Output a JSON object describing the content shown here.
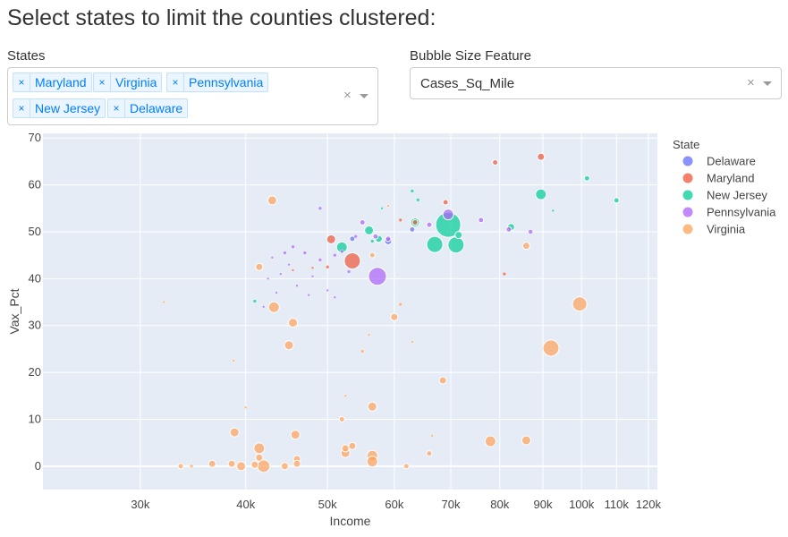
{
  "title": "Select states to limit the counties clustered:",
  "states_filter": {
    "label": "States",
    "selected": [
      "Maryland",
      "Virginia",
      "Pennsylvania",
      "New Jersey",
      "Delaware"
    ],
    "clear_icon": "×",
    "remove_icon": "×"
  },
  "bubble_filter": {
    "label": "Bubble Size Feature",
    "value": "Cases_Sq_Mile",
    "clear_icon": "×"
  },
  "chart_data": {
    "type": "scatter",
    "xlabel": "Income",
    "ylabel": "Vax_Pct",
    "x_scale": "log",
    "xlim": [
      23000,
      123000
    ],
    "ylim": [
      -5,
      71
    ],
    "x_ticks": [
      {
        "v": 30000,
        "label": "30k"
      },
      {
        "v": 40000,
        "label": "40k"
      },
      {
        "v": 50000,
        "label": "50k"
      },
      {
        "v": 60000,
        "label": "60k"
      },
      {
        "v": 70000,
        "label": "70k"
      },
      {
        "v": 80000,
        "label": "80k"
      },
      {
        "v": 90000,
        "label": "90k"
      },
      {
        "v": 100000,
        "label": "100k"
      },
      {
        "v": 110000,
        "label": "110k"
      },
      {
        "v": 120000,
        "label": "120k"
      }
    ],
    "y_ticks": [
      0,
      10,
      20,
      30,
      40,
      50,
      60,
      70
    ],
    "legend_title": "State",
    "legend_position": "right",
    "series": [
      {
        "name": "Delaware",
        "color": "#636efa",
        "points": [
          {
            "x": 53500,
            "y": 48.5,
            "s": 3
          },
          {
            "x": 59000,
            "y": 48,
            "s": 4
          },
          {
            "x": 63000,
            "y": 50.5,
            "s": 3
          }
        ]
      },
      {
        "name": "Maryland",
        "color": "#ef553b",
        "points": [
          {
            "x": 50500,
            "y": 48.4,
            "s": 5
          },
          {
            "x": 53500,
            "y": 43.8,
            "s": 9
          },
          {
            "x": 50000,
            "y": 42.5,
            "s": 2
          },
          {
            "x": 61000,
            "y": 52.5,
            "s": 2
          },
          {
            "x": 63500,
            "y": 52,
            "s": 3
          },
          {
            "x": 69000,
            "y": 56.3,
            "s": 3
          },
          {
            "x": 79000,
            "y": 64.8,
            "s": 3
          },
          {
            "x": 89500,
            "y": 66,
            "s": 4
          },
          {
            "x": 81000,
            "y": 41,
            "s": 2
          },
          {
            "x": 48000,
            "y": 42.3,
            "s": 1.5
          },
          {
            "x": 45500,
            "y": 41.8,
            "s": 1.5
          }
        ]
      },
      {
        "name": "New Jersey",
        "color": "#00cc96",
        "points": [
          {
            "x": 69500,
            "y": 51.5,
            "s": 14
          },
          {
            "x": 67000,
            "y": 47.3,
            "s": 9
          },
          {
            "x": 71000,
            "y": 47.2,
            "s": 9
          },
          {
            "x": 52000,
            "y": 46.7,
            "s": 6
          },
          {
            "x": 56000,
            "y": 50.3,
            "s": 5
          },
          {
            "x": 63500,
            "y": 52,
            "s": 5
          },
          {
            "x": 89500,
            "y": 58,
            "s": 6
          },
          {
            "x": 57500,
            "y": 48.5,
            "s": 4
          },
          {
            "x": 71500,
            "y": 49.3,
            "s": 4
          },
          {
            "x": 82500,
            "y": 51,
            "s": 4
          },
          {
            "x": 101500,
            "y": 61.4,
            "s": 3
          },
          {
            "x": 110000,
            "y": 56.7,
            "s": 3
          },
          {
            "x": 64000,
            "y": 56.8,
            "s": 2
          },
          {
            "x": 63000,
            "y": 58.7,
            "s": 2
          },
          {
            "x": 56500,
            "y": 48,
            "s": 2
          },
          {
            "x": 41000,
            "y": 35.2,
            "s": 2
          },
          {
            "x": 58000,
            "y": 55,
            "s": 1.5
          },
          {
            "x": 92500,
            "y": 54.5,
            "s": 1.5
          }
        ]
      },
      {
        "name": "Pennsylvania",
        "color": "#ab63fa",
        "points": [
          {
            "x": 57300,
            "y": 40.5,
            "s": 10
          },
          {
            "x": 69500,
            "y": 53.7,
            "s": 6
          },
          {
            "x": 57000,
            "y": 49,
            "s": 3
          },
          {
            "x": 55000,
            "y": 52,
            "s": 3
          },
          {
            "x": 59000,
            "y": 48.5,
            "s": 3
          },
          {
            "x": 66000,
            "y": 51.5,
            "s": 3
          },
          {
            "x": 76000,
            "y": 52.5,
            "s": 3
          },
          {
            "x": 82000,
            "y": 50.5,
            "s": 3
          },
          {
            "x": 87000,
            "y": 50,
            "s": 2.5
          },
          {
            "x": 52000,
            "y": 45.8,
            "s": 2
          },
          {
            "x": 49000,
            "y": 44,
            "s": 2
          },
          {
            "x": 51000,
            "y": 45,
            "s": 2
          },
          {
            "x": 47000,
            "y": 45.5,
            "s": 2
          },
          {
            "x": 45500,
            "y": 46.8,
            "s": 2
          },
          {
            "x": 44500,
            "y": 45.5,
            "s": 2
          },
          {
            "x": 43000,
            "y": 44.5,
            "s": 1.5
          },
          {
            "x": 45000,
            "y": 43,
            "s": 1.5
          },
          {
            "x": 42500,
            "y": 40,
            "s": 1.5
          },
          {
            "x": 43500,
            "y": 37,
            "s": 1.5
          },
          {
            "x": 48000,
            "y": 40.5,
            "s": 1.5
          },
          {
            "x": 49000,
            "y": 55,
            "s": 2
          },
          {
            "x": 54000,
            "y": 49,
            "s": 2
          },
          {
            "x": 53000,
            "y": 41.5,
            "s": 2
          },
          {
            "x": 44000,
            "y": 41,
            "s": 1.5
          },
          {
            "x": 46000,
            "y": 38.5,
            "s": 1.5
          },
          {
            "x": 47500,
            "y": 36.5,
            "s": 1.5
          },
          {
            "x": 50000,
            "y": 37.5,
            "s": 1.5
          },
          {
            "x": 51000,
            "y": 36,
            "s": 1.5
          },
          {
            "x": 42000,
            "y": 34,
            "s": 1.5
          }
        ]
      },
      {
        "name": "Virginia",
        "color": "#ffa15a",
        "points": [
          {
            "x": 99500,
            "y": 34.6,
            "s": 8
          },
          {
            "x": 92000,
            "y": 25.2,
            "s": 9
          },
          {
            "x": 43000,
            "y": 56.7,
            "s": 5
          },
          {
            "x": 43200,
            "y": 33.9,
            "s": 6
          },
          {
            "x": 45500,
            "y": 30.6,
            "s": 5
          },
          {
            "x": 45000,
            "y": 25.8,
            "s": 5
          },
          {
            "x": 41500,
            "y": 42.5,
            "s": 4
          },
          {
            "x": 41500,
            "y": 3.8,
            "s": 6
          },
          {
            "x": 38800,
            "y": 7.2,
            "s": 5
          },
          {
            "x": 45800,
            "y": 6.7,
            "s": 5
          },
          {
            "x": 56500,
            "y": 12.7,
            "s": 5
          },
          {
            "x": 56500,
            "y": 2.2,
            "s": 6
          },
          {
            "x": 56500,
            "y": 1.0,
            "s": 6
          },
          {
            "x": 42000,
            "y": 0,
            "s": 7
          },
          {
            "x": 39500,
            "y": 0,
            "s": 5
          },
          {
            "x": 41000,
            "y": 0.3,
            "s": 4
          },
          {
            "x": 46000,
            "y": 1.5,
            "s": 4
          },
          {
            "x": 46000,
            "y": 0.5,
            "s": 4
          },
          {
            "x": 44500,
            "y": 0,
            "s": 4
          },
          {
            "x": 41500,
            "y": 1.8,
            "s": 4
          },
          {
            "x": 36500,
            "y": 0.5,
            "s": 4
          },
          {
            "x": 38500,
            "y": 0.5,
            "s": 4
          },
          {
            "x": 33500,
            "y": 0,
            "s": 3
          },
          {
            "x": 34500,
            "y": 0,
            "s": 2
          },
          {
            "x": 52500,
            "y": 2.8,
            "s": 5
          },
          {
            "x": 52500,
            "y": 3.8,
            "s": 4
          },
          {
            "x": 53500,
            "y": 4.3,
            "s": 4
          },
          {
            "x": 78000,
            "y": 5.3,
            "s": 6
          },
          {
            "x": 86000,
            "y": 5.5,
            "s": 5
          },
          {
            "x": 86000,
            "y": 47,
            "s": 4
          },
          {
            "x": 68500,
            "y": 18.3,
            "s": 4
          },
          {
            "x": 60000,
            "y": 31.8,
            "s": 4
          },
          {
            "x": 66000,
            "y": 2.7,
            "s": 3
          },
          {
            "x": 62000,
            "y": 0,
            "s": 3
          },
          {
            "x": 52000,
            "y": 10,
            "s": 3
          },
          {
            "x": 55000,
            "y": 24.5,
            "s": 2
          },
          {
            "x": 61000,
            "y": 34.5,
            "s": 2
          },
          {
            "x": 56500,
            "y": 45,
            "s": 3
          },
          {
            "x": 38700,
            "y": 22.5,
            "s": 1.5
          },
          {
            "x": 40000,
            "y": 12.5,
            "s": 1.5
          },
          {
            "x": 32000,
            "y": 35,
            "s": 1.5
          },
          {
            "x": 63000,
            "y": 26.5,
            "s": 1.5
          },
          {
            "x": 52500,
            "y": 15,
            "s": 1.5
          },
          {
            "x": 66500,
            "y": 6.5,
            "s": 1.5
          },
          {
            "x": 56000,
            "y": 28,
            "s": 1.5
          },
          {
            "x": 59000,
            "y": 55.5,
            "s": 1.5
          }
        ]
      }
    ]
  }
}
